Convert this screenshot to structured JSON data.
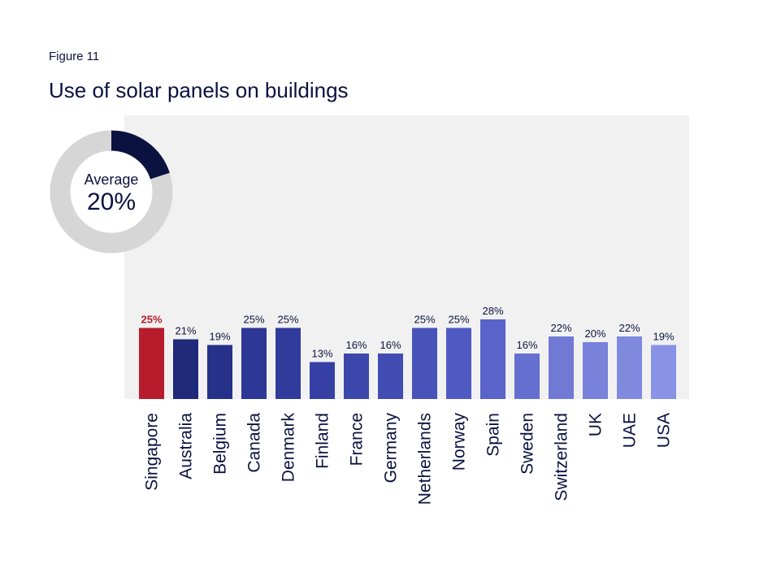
{
  "figure_label": "Figure 11",
  "chart_data": {
    "type": "bar",
    "title": "Use of solar panels on buildings",
    "categories": [
      "Singapore",
      "Australia",
      "Belgium",
      "Canada",
      "Denmark",
      "Finland",
      "France",
      "Germany",
      "Netherlands",
      "Norway",
      "Spain",
      "Sweden",
      "Switzerland",
      "UK",
      "UAE",
      "USA"
    ],
    "values": [
      25,
      21,
      19,
      25,
      25,
      13,
      16,
      16,
      25,
      25,
      28,
      16,
      22,
      20,
      22,
      19
    ],
    "value_labels": [
      "25%",
      "21%",
      "19%",
      "25%",
      "25%",
      "13%",
      "16%",
      "16%",
      "25%",
      "25%",
      "28%",
      "16%",
      "22%",
      "20%",
      "22%",
      "19%"
    ],
    "unit": "%",
    "highlight_category": "Singapore",
    "colors": [
      "#b71c2c",
      "#1f2a7a",
      "#26318a",
      "#2c3796",
      "#303b9c",
      "#3640a4",
      "#3c47ac",
      "#414db2",
      "#4853b9",
      "#4f5ac2",
      "#5963c9",
      "#6570d0",
      "#7079d4",
      "#7882da",
      "#7f8adf",
      "#8893e6"
    ],
    "average": {
      "label": "Average",
      "value_label": "20%",
      "value": 20,
      "fill_color": "#0b1240",
      "track_color": "#d6d6d6"
    },
    "background_color": "#f1f1f1"
  }
}
